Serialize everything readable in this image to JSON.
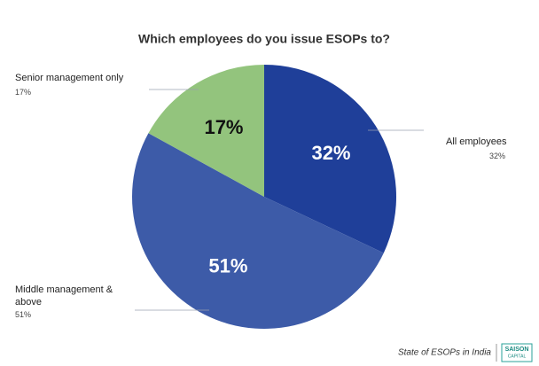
{
  "chart_data": {
    "type": "pie",
    "title": "Which employees do you issue ESOPs to?",
    "categories": [
      "All employees",
      "Middle management & above",
      "Senior management only"
    ],
    "values": [
      32,
      51,
      17
    ],
    "value_labels": [
      "32%",
      "51%",
      "17%"
    ],
    "colors": [
      "#1f3f99",
      "#3d5ba8",
      "#93c47d"
    ],
    "label_colors": [
      "#ffffff",
      "#ffffff",
      "#111111"
    ],
    "source": "State of ESOPs in India",
    "logo": [
      "SAISON",
      "CAPITAL"
    ]
  }
}
